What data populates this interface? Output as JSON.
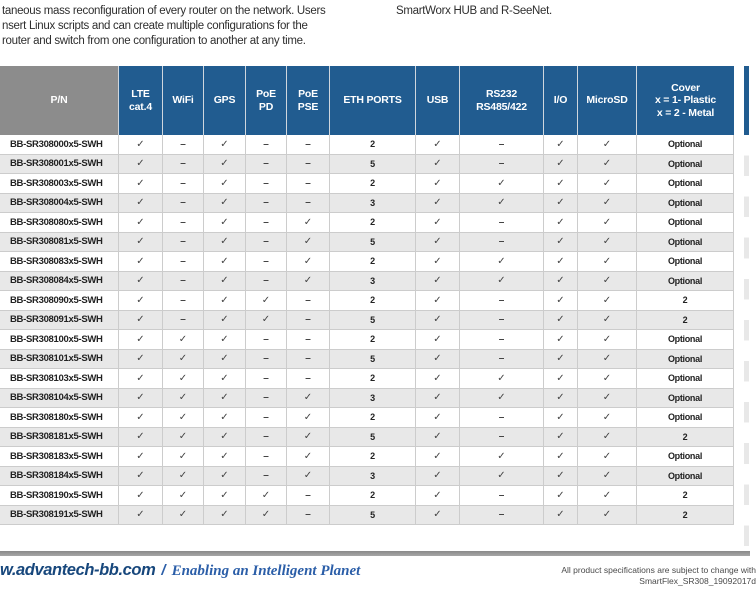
{
  "colors": {
    "header_blue": "#215C90",
    "header_gray": "#8C8C8C",
    "row_stripe": "#E8E8E8",
    "footer_brand_navy": "#17477C",
    "footer_tagline_blue": "#2B5EA8"
  },
  "intro": {
    "left_lines": "taneous mass reconfiguration of every router on the network. Users\nnsert Linux scripts and can create multiple configurations for the\nrouter and switch from one configuration to another at any time.",
    "right_text": "SmartWorx HUB and R-SeeNet."
  },
  "table": {
    "columns": [
      "P/N",
      "LTE\ncat.4",
      "WiFi",
      "GPS",
      "PoE\nPD",
      "PoE\nPSE",
      "ETH PORTS",
      "USB",
      "RS232\nRS485/422",
      "I/O",
      "MicroSD",
      "Cover\nx = 1- Plastic\nx = 2 - Metal"
    ],
    "col_keys": [
      "pn",
      "lte-cat4",
      "wifi",
      "gps",
      "poe-pd",
      "poe-pse",
      "eth-ports",
      "usb",
      "rs232-rs485",
      "io",
      "microsd",
      "cover"
    ],
    "rows": [
      {
        "cells": [
          "BB-SR308000x5-SWH",
          "✓",
          "–",
          "✓",
          "–",
          "–",
          "2",
          "✓",
          "–",
          "✓",
          "✓",
          "Optional"
        ]
      },
      {
        "cells": [
          "BB-SR308001x5-SWH",
          "✓",
          "–",
          "✓",
          "–",
          "–",
          "5",
          "✓",
          "–",
          "✓",
          "✓",
          "Optional"
        ]
      },
      {
        "cells": [
          "BB-SR308003x5-SWH",
          "✓",
          "–",
          "✓",
          "–",
          "–",
          "2",
          "✓",
          "✓",
          "✓",
          "✓",
          "Optional"
        ]
      },
      {
        "cells": [
          "BB-SR308004x5-SWH",
          "✓",
          "–",
          "✓",
          "–",
          "–",
          "3",
          "✓",
          "✓",
          "✓",
          "✓",
          "Optional"
        ]
      },
      {
        "cells": [
          "BB-SR308080x5-SWH",
          "✓",
          "–",
          "✓",
          "–",
          "✓",
          "2",
          "✓",
          "–",
          "✓",
          "✓",
          "Optional"
        ]
      },
      {
        "cells": [
          "BB-SR308081x5-SWH",
          "✓",
          "–",
          "✓",
          "–",
          "✓",
          "5",
          "✓",
          "–",
          "✓",
          "✓",
          "Optional"
        ]
      },
      {
        "cells": [
          "BB-SR308083x5-SWH",
          "✓",
          "–",
          "✓",
          "–",
          "✓",
          "2",
          "✓",
          "✓",
          "✓",
          "✓",
          "Optional"
        ]
      },
      {
        "cells": [
          "BB-SR308084x5-SWH",
          "✓",
          "–",
          "✓",
          "–",
          "✓",
          "3",
          "✓",
          "✓",
          "✓",
          "✓",
          "Optional"
        ]
      },
      {
        "cells": [
          "BB-SR308090x5-SWH",
          "✓",
          "–",
          "✓",
          "✓",
          "–",
          "2",
          "✓",
          "–",
          "✓",
          "✓",
          "2"
        ]
      },
      {
        "cells": [
          "BB-SR308091x5-SWH",
          "✓",
          "–",
          "✓",
          "✓",
          "–",
          "5",
          "✓",
          "–",
          "✓",
          "✓",
          "2"
        ]
      },
      {
        "cells": [
          "BB-SR308100x5-SWH",
          "✓",
          "✓",
          "✓",
          "–",
          "–",
          "2",
          "✓",
          "–",
          "✓",
          "✓",
          "Optional"
        ]
      },
      {
        "cells": [
          "BB-SR308101x5-SWH",
          "✓",
          "✓",
          "✓",
          "–",
          "–",
          "5",
          "✓",
          "–",
          "✓",
          "✓",
          "Optional"
        ]
      },
      {
        "cells": [
          "BB-SR308103x5-SWH",
          "✓",
          "✓",
          "✓",
          "–",
          "–",
          "2",
          "✓",
          "✓",
          "✓",
          "✓",
          "Optional"
        ]
      },
      {
        "cells": [
          "BB-SR308104x5-SWH",
          "✓",
          "✓",
          "✓",
          "–",
          "✓",
          "3",
          "✓",
          "✓",
          "✓",
          "✓",
          "Optional"
        ]
      },
      {
        "cells": [
          "BB-SR308180x5-SWH",
          "✓",
          "✓",
          "✓",
          "–",
          "✓",
          "2",
          "✓",
          "–",
          "✓",
          "✓",
          "Optional"
        ]
      },
      {
        "cells": [
          "BB-SR308181x5-SWH",
          "✓",
          "✓",
          "✓",
          "–",
          "✓",
          "5",
          "✓",
          "–",
          "✓",
          "✓",
          "2"
        ]
      },
      {
        "cells": [
          "BB-SR308183x5-SWH",
          "✓",
          "✓",
          "✓",
          "–",
          "✓",
          "2",
          "✓",
          "✓",
          "✓",
          "✓",
          "Optional"
        ]
      },
      {
        "cells": [
          "BB-SR308184x5-SWH",
          "✓",
          "✓",
          "✓",
          "–",
          "✓",
          "3",
          "✓",
          "✓",
          "✓",
          "✓",
          "Optional"
        ]
      },
      {
        "cells": [
          "BB-SR308190x5-SWH",
          "✓",
          "✓",
          "✓",
          "✓",
          "–",
          "2",
          "✓",
          "–",
          "✓",
          "✓",
          "2"
        ]
      },
      {
        "cells": [
          "BB-SR308191x5-SWH",
          "✓",
          "✓",
          "✓",
          "✓",
          "–",
          "5",
          "✓",
          "–",
          "✓",
          "✓",
          "2"
        ]
      }
    ]
  },
  "footer": {
    "brand": "w.advantech-bb.com",
    "separator": "/",
    "tagline": "Enabling an Intelligent Planet",
    "note_line1": "All product specifications are subject to change with",
    "note_line2": "SmartFlex_SR308_19092017d"
  }
}
